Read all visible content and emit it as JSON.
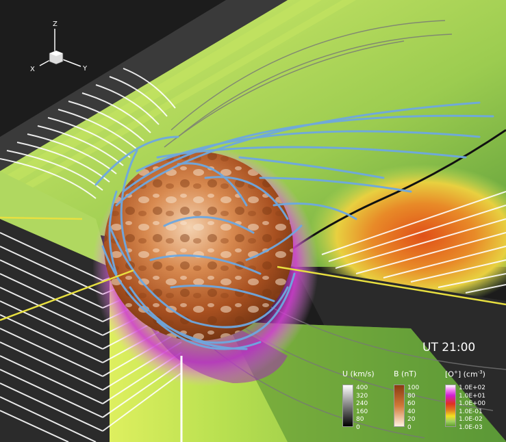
{
  "axes": {
    "z": "Z",
    "x": "X",
    "y": "Y"
  },
  "time_label": "UT 21:00",
  "legends": [
    {
      "title": "U (km/s)",
      "ticks": [
        "400",
        "320",
        "240",
        "160",
        "80",
        "0"
      ],
      "colors": [
        "#ffffff",
        "#000000"
      ]
    },
    {
      "title": "B (nT)",
      "ticks": [
        "100",
        "80",
        "60",
        "40",
        "20",
        "0"
      ],
      "colors": [
        "#8a3a10",
        "#fff2e0"
      ]
    },
    {
      "title_main": "[O",
      "title_sup1": "+",
      "title_mid": "] (cm",
      "title_sup2": "-3",
      "title_end": ")",
      "ticks": [
        "1.0E+02",
        "1.0E+01",
        "1.0E+00",
        "1.0E-01",
        "1.0E-02",
        "1.0E-03"
      ],
      "colors": [
        "#ffffff",
        "#d020d0",
        "#e03020",
        "#e07820",
        "#f0e020",
        "#a0d060",
        "#60a030"
      ]
    }
  ]
}
